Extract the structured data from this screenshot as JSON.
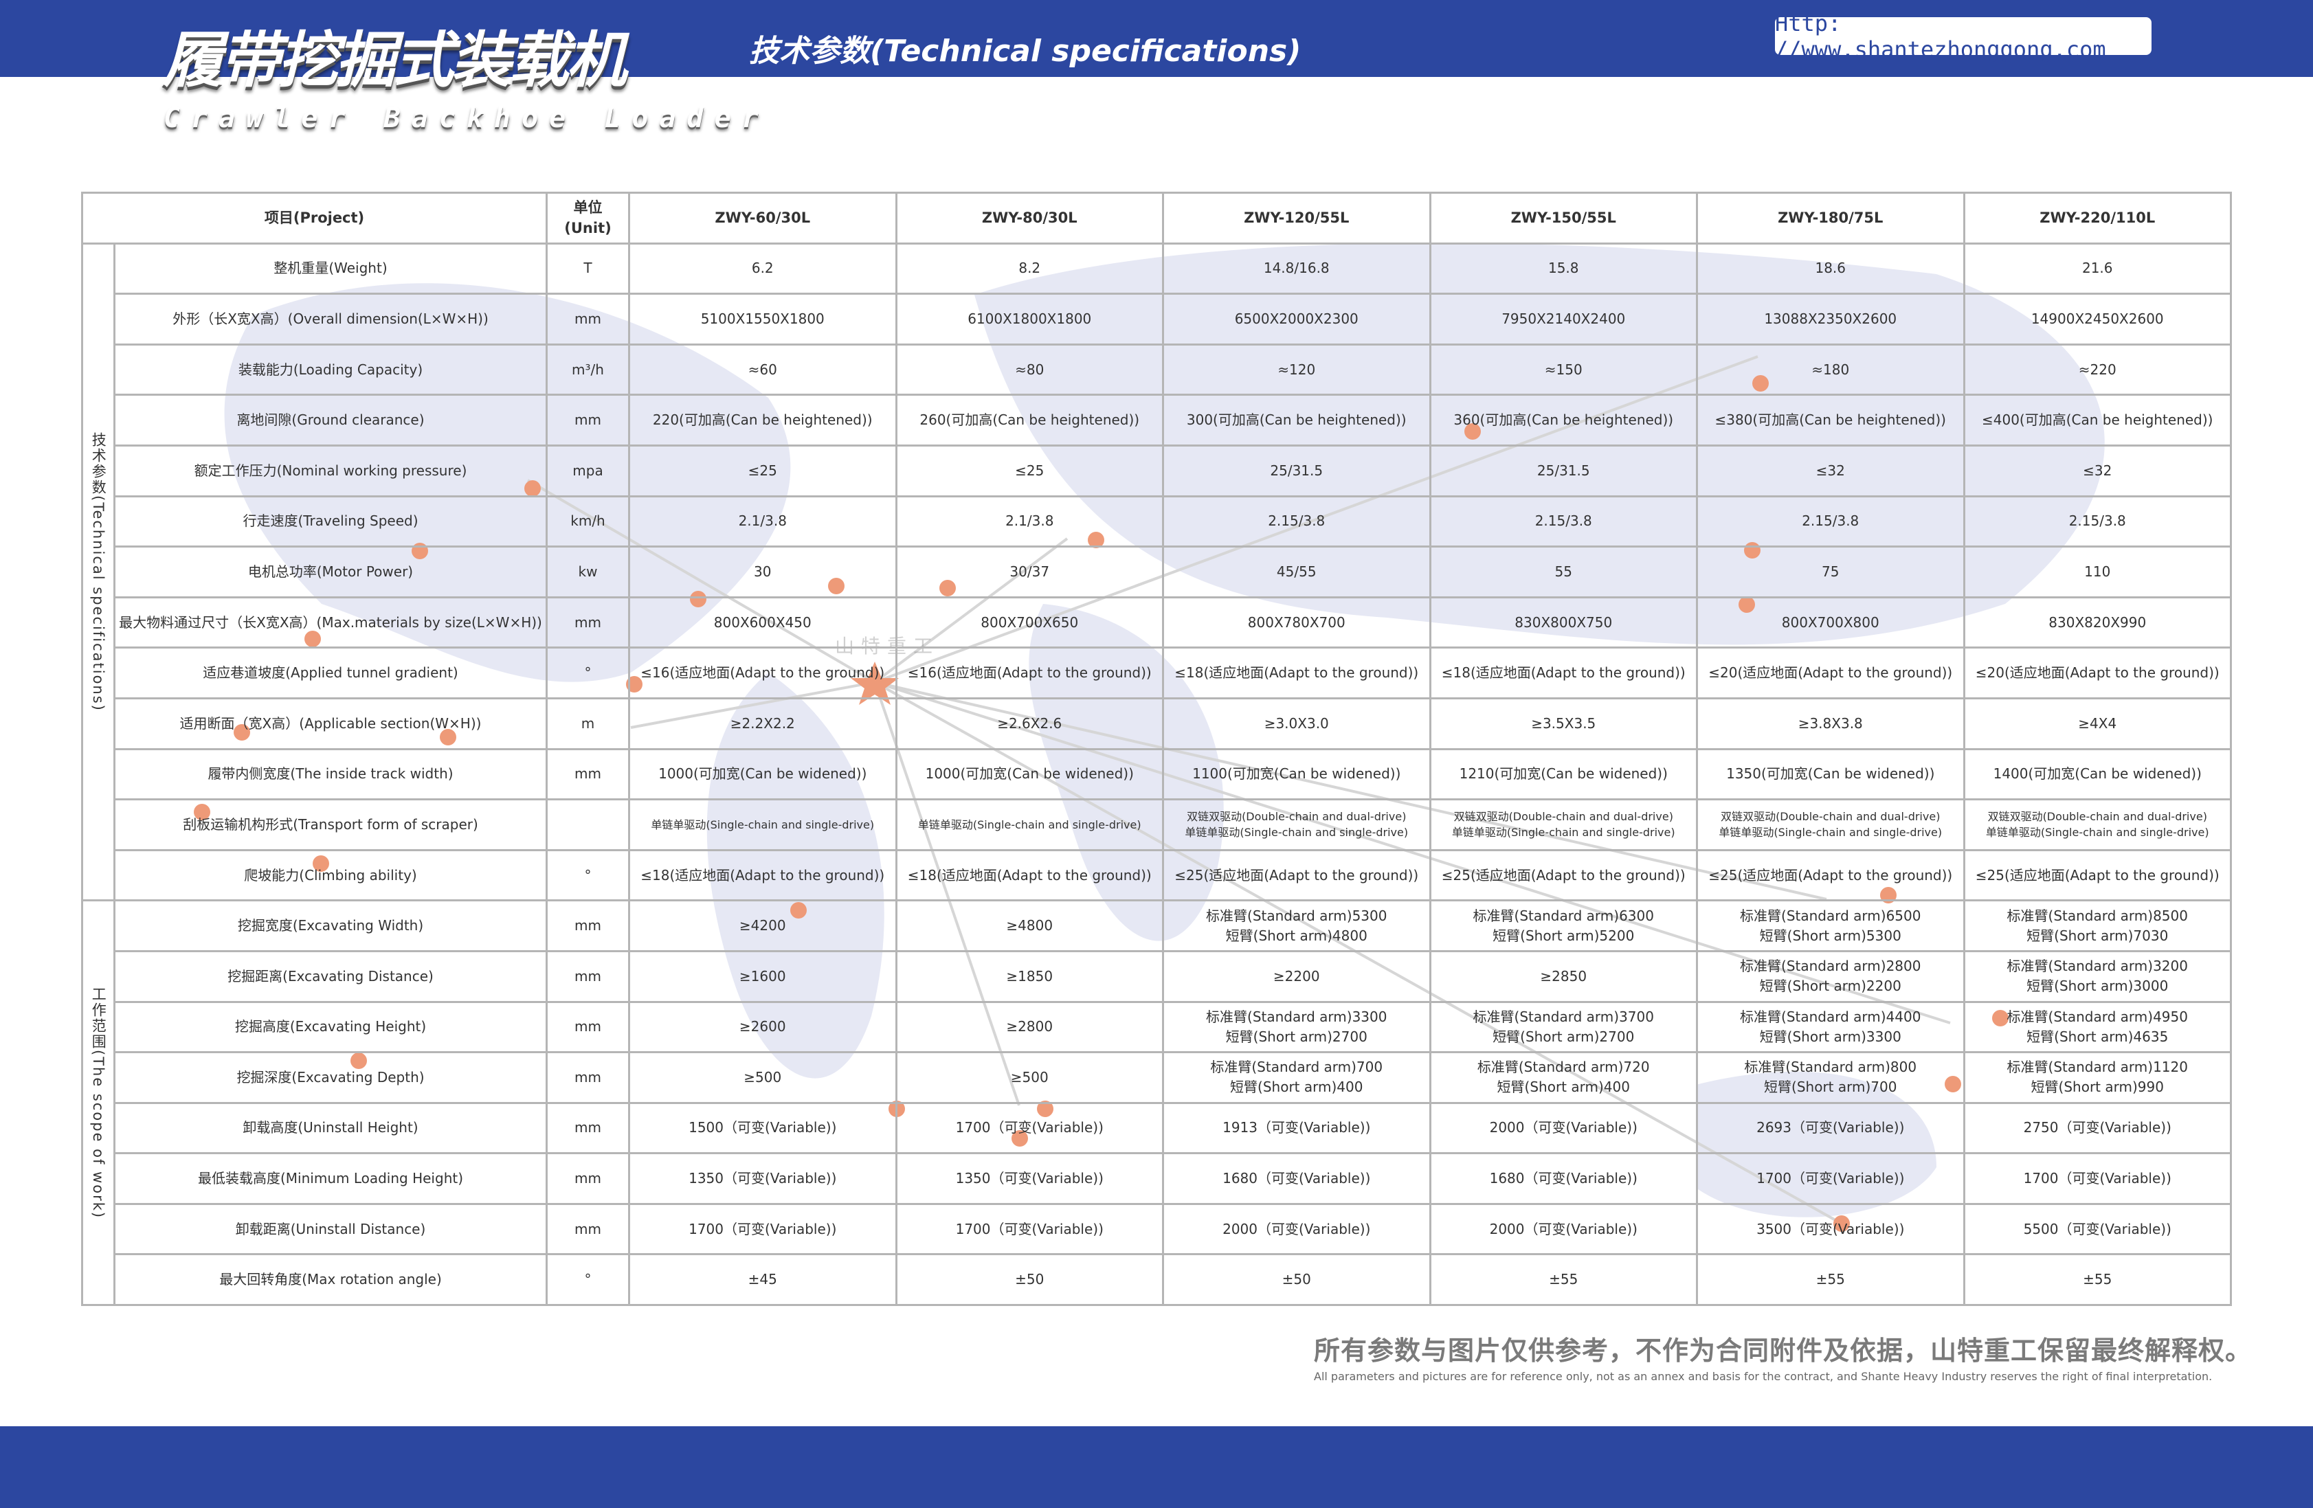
{
  "header": {
    "title_cn": "履带挖掘式装载机",
    "title_en": "Crawler Backhoe Loader",
    "subtitle": "技术参数(Technical specifications)",
    "url": "Http: //www.shantezhonggong.com"
  },
  "watermark": "山特重工",
  "colors": {
    "brand_blue": "#2c47a0",
    "dot_orange": "#ee9a78",
    "border_gray": "#b5b5b5"
  },
  "table": {
    "headers": {
      "project": "项目(Project)",
      "unit": "单位(Unit)"
    },
    "models": [
      "ZWY-60/30L",
      "ZWY-80/30L",
      "ZWY-120/55L",
      "ZWY-150/55L",
      "ZWY-180/75L",
      "ZWY-220/110L"
    ],
    "groups": [
      {
        "label": "技术参数(Technical specifications)",
        "rows": [
          {
            "label": "整机重量(Weight)",
            "unit": "T",
            "values": [
              "6.2",
              "8.2",
              "14.8/16.8",
              "15.8",
              "18.6",
              "21.6"
            ]
          },
          {
            "label": "外形（长X宽X高）(Overall dimension(L×W×H))",
            "unit": "mm",
            "values": [
              "5100X1550X1800",
              "6100X1800X1800",
              "6500X2000X2300",
              "7950X2140X2400",
              "13088X2350X2600",
              "14900X2450X2600"
            ]
          },
          {
            "label": "装载能力(Loading Capacity)",
            "unit": "m³/h",
            "values": [
              "≈60",
              "≈80",
              "≈120",
              "≈150",
              "≈180",
              "≈220"
            ]
          },
          {
            "label": "离地间隙(Ground clearance)",
            "unit": "mm",
            "values": [
              "220(可加高(Can be heightened))",
              "260(可加高(Can be heightened))",
              "300(可加高(Can be heightened))",
              "360(可加高(Can be heightened))",
              "≤380(可加高(Can be heightened))",
              "≤400(可加高(Can be heightened))"
            ]
          },
          {
            "label": "额定工作压力(Nominal working pressure)",
            "unit": "mpa",
            "values": [
              "≤25",
              "≤25",
              "25/31.5",
              "25/31.5",
              "≤32",
              "≤32"
            ]
          },
          {
            "label": "行走速度(Traveling Speed)",
            "unit": "km/h",
            "values": [
              "2.1/3.8",
              "2.1/3.8",
              "2.15/3.8",
              "2.15/3.8",
              "2.15/3.8",
              "2.15/3.8"
            ]
          },
          {
            "label": "电机总功率(Motor Power)",
            "unit": "kw",
            "values": [
              "30",
              "30/37",
              "45/55",
              "55",
              "75",
              "110"
            ]
          },
          {
            "label": "最大物料通过尺寸（长X宽X高）(Max.materials by size(L×W×H))",
            "unit": "mm",
            "values": [
              "800X600X450",
              "800X700X650",
              "800X780X700",
              "830X800X750",
              "800X700X800",
              "830X820X990"
            ]
          },
          {
            "label": "适应巷道坡度(Applied tunnel gradient)",
            "unit": "°",
            "values": [
              "≤16(适应地面(Adapt to the ground))",
              "≤16(适应地面(Adapt to the ground))",
              "≤18(适应地面(Adapt to the ground))",
              "≤18(适应地面(Adapt to the ground))",
              "≤20(适应地面(Adapt to the ground))",
              "≤20(适应地面(Adapt to the ground))"
            ]
          },
          {
            "label": "适用断面（宽X高）(Applicable section(W×H))",
            "unit": "m",
            "values": [
              "≥2.2X2.2",
              "≥2.6X2.6",
              "≥3.0X3.0",
              "≥3.5X3.5",
              "≥3.8X3.8",
              "≥4X4"
            ]
          },
          {
            "label": "履带内侧宽度(The inside track width)",
            "unit": "mm",
            "values": [
              "1000(可加宽(Can be widened))",
              "1000(可加宽(Can be widened))",
              "1100(可加宽(Can be widened))",
              "1210(可加宽(Can be widened))",
              "1350(可加宽(Can be widened))",
              "1400(可加宽(Can be widened))"
            ]
          },
          {
            "label": "刮板运输机构形式(Transport form of scraper)",
            "unit": "",
            "small": true,
            "values": [
              "单链单驱动(Single-chain and single-drive)",
              "单链单驱动(Single-chain and single-drive)",
              "双链双驱动(Double-chain and dual-drive)\n单链单驱动(Single-chain and single-drive)",
              "双链双驱动(Double-chain and dual-drive)\n单链单驱动(Single-chain and single-drive)",
              "双链双驱动(Double-chain and dual-drive)\n单链单驱动(Single-chain and single-drive)",
              "双链双驱动(Double-chain and dual-drive)\n单链单驱动(Single-chain and single-drive)"
            ]
          },
          {
            "label": "爬坡能力(Climbing ability)",
            "unit": "°",
            "values": [
              "≤18(适应地面(Adapt to the ground))",
              "≤18(适应地面(Adapt to the ground))",
              "≤25(适应地面(Adapt to the ground))",
              "≤25(适应地面(Adapt to the ground))",
              "≤25(适应地面(Adapt to the ground))",
              "≤25(适应地面(Adapt to the ground))"
            ]
          }
        ]
      },
      {
        "label": "工作范围(The scope of work)",
        "rows": [
          {
            "label": "挖掘宽度(Excavating Width)",
            "unit": "mm",
            "values": [
              "≥4200",
              "≥4800",
              "标准臂(Standard arm)5300\n短臂(Short arm)4800",
              "标准臂(Standard arm)6300\n短臂(Short arm)5200",
              "标准臂(Standard arm)6500\n短臂(Short arm)5300",
              "标准臂(Standard arm)8500\n短臂(Short arm)7030"
            ]
          },
          {
            "label": "挖掘距离(Excavating Distance)",
            "unit": "mm",
            "values": [
              "≥1600",
              "≥1850",
              "≥2200",
              "≥2850",
              "标准臂(Standard arm)2800\n短臂(Short arm)2200",
              "标准臂(Standard arm)3200\n短臂(Short arm)3000"
            ]
          },
          {
            "label": "挖掘高度(Excavating Height)",
            "unit": "mm",
            "values": [
              "≥2600",
              "≥2800",
              "标准臂(Standard arm)3300\n短臂(Short arm)2700",
              "标准臂(Standard arm)3700\n短臂(Short arm)2700",
              "标准臂(Standard arm)4400\n短臂(Short arm)3300",
              "标准臂(Standard arm)4950\n短臂(Short arm)4635"
            ]
          },
          {
            "label": "挖掘深度(Excavating Depth)",
            "unit": "mm",
            "values": [
              "≥500",
              "≥500",
              "标准臂(Standard arm)700\n短臂(Short arm)400",
              "标准臂(Standard arm)720\n短臂(Short arm)400",
              "标准臂(Standard arm)800\n短臂(Short arm)700",
              "标准臂(Standard arm)1120\n短臂(Short arm)990"
            ]
          },
          {
            "label": "卸载高度(Uninstall Height)",
            "unit": "mm",
            "values": [
              "1500（可变(Variable))",
              "1700（可变(Variable))",
              "1913（可变(Variable))",
              "2000（可变(Variable))",
              "2693（可变(Variable))",
              "2750（可变(Variable))"
            ]
          },
          {
            "label": "最低装载高度(Minimum Loading Height)",
            "unit": "mm",
            "values": [
              "1350（可变(Variable))",
              "1350（可变(Variable))",
              "1680（可变(Variable))",
              "1680（可变(Variable))",
              "1700（可变(Variable))",
              "1700（可变(Variable))"
            ]
          },
          {
            "label": "卸载距离(Uninstall Distance)",
            "unit": "mm",
            "values": [
              "1700（可变(Variable))",
              "1700（可变(Variable))",
              "2000（可变(Variable))",
              "2000（可变(Variable))",
              "3500（可变(Variable))",
              "5500（可变(Variable))"
            ]
          },
          {
            "label": "最大回转角度(Max rotation angle)",
            "unit": "°",
            "values": [
              "±45",
              "±50",
              "±50",
              "±55",
              "±55",
              "±55"
            ]
          }
        ]
      }
    ]
  },
  "footer": {
    "disclaimer_cn": "所有参数与图片仅供参考，不作为合同附件及依据，山特重工保留最终解释权。",
    "disclaimer_en": "All parameters and pictures are for reference only, not as an annex and basis for the contract, and Shante Heavy Industry reserves the right of final interpretation."
  }
}
